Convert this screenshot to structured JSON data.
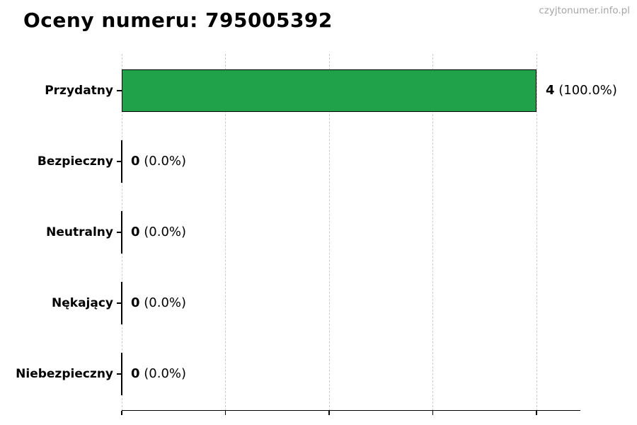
{
  "page": {
    "title": "Oceny numeru: 795005392",
    "watermark": "czyjtonumer.info.pl"
  },
  "chart_data": {
    "type": "bar",
    "orientation": "horizontal",
    "title": "Oceny numeru: 795005392",
    "categories": [
      "Przydatny",
      "Bezpieczny",
      "Neutralny",
      "Nękający",
      "Niebezpieczny"
    ],
    "values": [
      4,
      0,
      0,
      0,
      0
    ],
    "percentages": [
      100.0,
      0.0,
      0.0,
      0.0,
      0.0
    ],
    "value_labels": [
      {
        "count": "4",
        "pct": " (100.0%)"
      },
      {
        "count": "0",
        "pct": " (0.0%)"
      },
      {
        "count": "0",
        "pct": " (0.0%)"
      },
      {
        "count": "0",
        "pct": " (0.0%)"
      },
      {
        "count": "0",
        "pct": " (0.0%)"
      }
    ],
    "xlim": [
      0,
      4.42
    ],
    "x_ticks": [
      0,
      1,
      2,
      3,
      4
    ],
    "x_tick_labels_visible": false,
    "grid": "dashed-vertical",
    "legend": "none",
    "bar_color": "#1fa24a",
    "bar_edge_color": "#000000",
    "gridline_color": "#cccccc",
    "watermark_color": "#a6a6a6"
  }
}
